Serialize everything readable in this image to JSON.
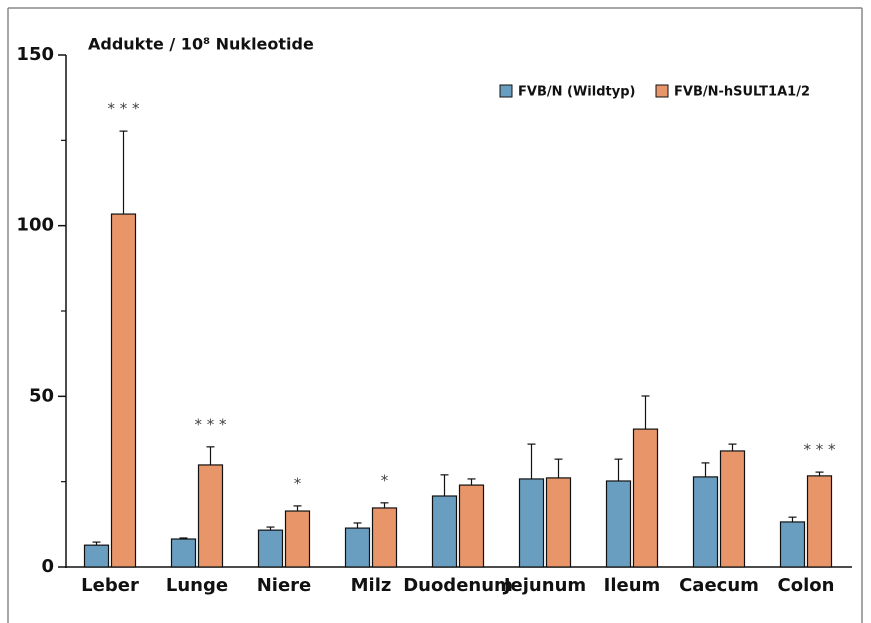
{
  "chart_data": {
    "type": "bar",
    "title": "Addukte / 10⁸ Nukleotide",
    "categories": [
      "Leber",
      "Lunge",
      "Niere",
      "Milz",
      "Duodenum",
      "Jejunum",
      "Ileum",
      "Caecum",
      "Colon"
    ],
    "series": [
      {
        "name": "FVB/N (Wildtyp)",
        "color": "#6a9ec0",
        "values": [
          6.4,
          8.2,
          10.8,
          11.4,
          20.8,
          25.8,
          25.2,
          26.4,
          13.2
        ],
        "errors": [
          0.9,
          0.3,
          0.9,
          1.5,
          6.2,
          10.2,
          6.4,
          4.1,
          1.4
        ]
      },
      {
        "name": "FVB/N-hSULT1A1/2",
        "color": "#e8956a",
        "values": [
          103.4,
          29.9,
          16.4,
          17.3,
          24.0,
          26.1,
          40.4,
          34.0,
          26.7
        ],
        "errors": [
          24.3,
          5.3,
          1.5,
          1.5,
          1.8,
          5.5,
          9.7,
          2.0,
          1.1
        ]
      }
    ],
    "significance": [
      "* * *",
      "* * *",
      "*",
      "*",
      null,
      null,
      null,
      null,
      "* * *"
    ],
    "ylim": [
      0,
      150
    ],
    "yticks": [
      0,
      50,
      100,
      150
    ],
    "yminor_ticks": [
      25,
      75,
      125
    ],
    "legend": "top-right"
  }
}
